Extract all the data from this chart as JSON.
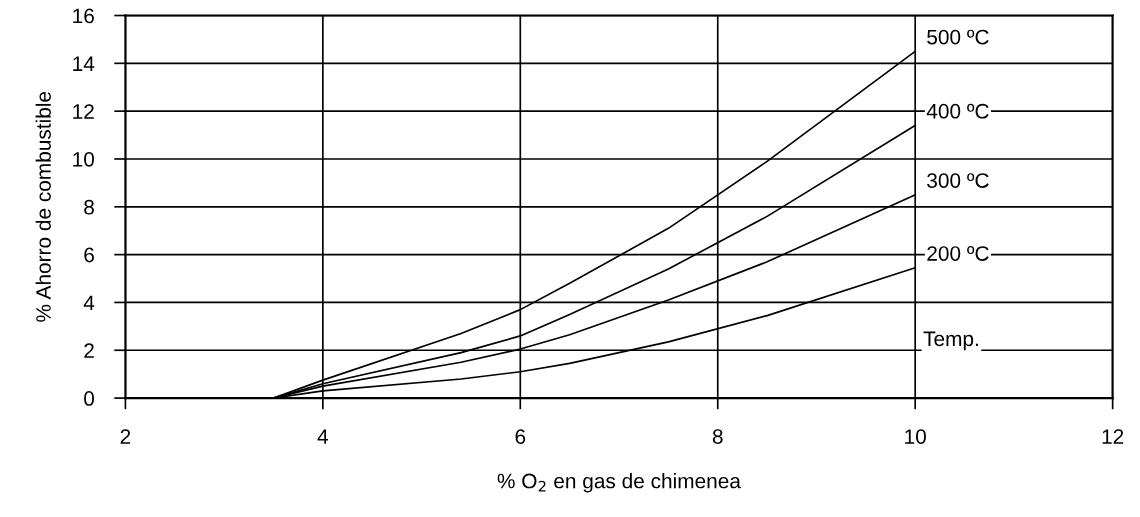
{
  "chart_data": {
    "type": "line",
    "xlabel": "% O$_{2}$ en gas de chimenea",
    "ylabel": "% Ahorro de combustible",
    "x": [
      3.5,
      4,
      5.4,
      6,
      6.5,
      7.5,
      8.5,
      10
    ],
    "series": [
      {
        "name": "500 ºC",
        "color": "#000000",
        "values": [
          0,
          0.75,
          2.7,
          3.7,
          4.8,
          7.1,
          9.9,
          14.5
        ]
      },
      {
        "name": "400 ºC",
        "color": "#000000",
        "values": [
          0,
          0.6,
          1.9,
          2.6,
          3.5,
          5.4,
          7.6,
          11.4
        ]
      },
      {
        "name": "300 ºC",
        "color": "#000000",
        "values": [
          0,
          0.5,
          1.5,
          2.05,
          2.65,
          4.1,
          5.7,
          8.5
        ]
      },
      {
        "name": "200 ºC",
        "color": "#000000",
        "values": [
          0,
          0.3,
          0.8,
          1.1,
          1.45,
          2.35,
          3.45,
          5.45
        ]
      }
    ],
    "annotations": [
      "Temp."
    ],
    "xlim": [
      2,
      12
    ],
    "xticks": [
      2,
      4,
      6,
      8,
      10,
      12
    ],
    "ylim": [
      0,
      16
    ],
    "yticks": [
      0,
      2,
      4,
      6,
      8,
      10,
      12,
      14,
      16
    ],
    "grid": true,
    "legend": false,
    "marker": "none",
    "line_style": "solid"
  }
}
